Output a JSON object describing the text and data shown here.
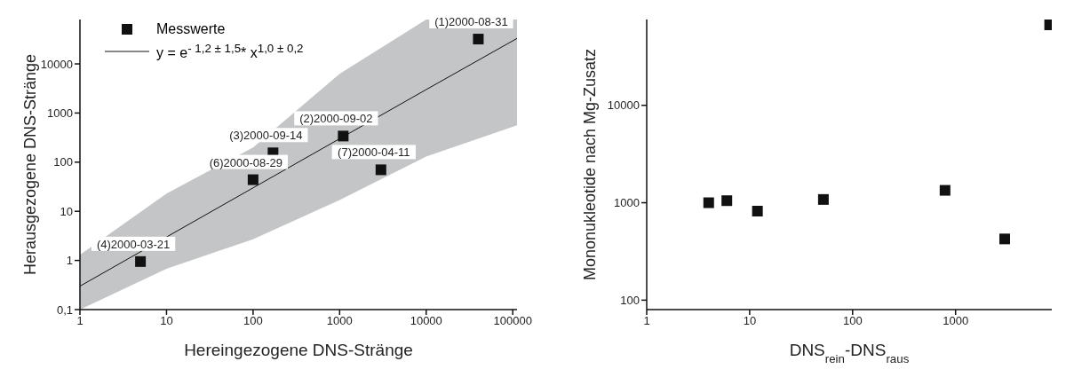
{
  "chart_data": [
    {
      "type": "scatter",
      "xlabel": "Hereingezogene DNS-Stränge",
      "ylabel": "Herausgezogene DNS-Stränge",
      "log": "xy",
      "marker": "square",
      "grid": false,
      "legend": "top left",
      "xlim": [
        1,
        112000
      ],
      "xticks": [
        1,
        10,
        100,
        1000,
        10000,
        100000
      ],
      "ylim": [
        0.1,
        80000
      ],
      "yticks": [
        {
          "value": 0.1,
          "label": "0,1"
        },
        1,
        10,
        100,
        1000,
        10000
      ],
      "series": [
        {
          "name": "Messwerte",
          "color": "#111111",
          "x": [
            5,
            100,
            170,
            1100,
            3000,
            40000
          ],
          "values": [
            0.95,
            44,
            155,
            340,
            70,
            32000
          ]
        },
        {
          "name": "y = e$^{- 1,2 ± 1,5}$* x$^{1,0 ± 0,2}$",
          "type": "line",
          "marker": "none",
          "color": "#111111",
          "x": [
            1,
            10,
            100,
            1000,
            10000,
            112000
          ],
          "values": [
            0.3,
            3,
            30,
            300,
            3000,
            33000
          ],
          "lower": [
            0.1,
            0.68,
            2.7,
            17,
            130,
            560
          ],
          "upper": [
            1.3,
            23,
            200,
            6300,
            80000,
            80000
          ]
        }
      ],
      "annotations": [
        {
          "text": "(1)2000-08-31",
          "x": 40000,
          "y": 32000
        },
        {
          "text": "(2)2000-09-02",
          "x": 1100,
          "y": 340
        },
        {
          "text": "(3)2000-09-14",
          "x": 170,
          "y": 155
        },
        {
          "text": "(6)2000-08-29",
          "x": 100,
          "y": 44
        },
        {
          "text": "(7)2000-04-11",
          "x": 3000,
          "y": 70
        },
        {
          "text": "(4)2000-03-21",
          "x": 5,
          "y": 0.95
        }
      ]
    },
    {
      "type": "scatter",
      "xlabel": "DNS$_{rein}$-DNS$_{raus}$",
      "ylabel": "Mononukleotide nach Mg-Zusatz",
      "log": "xy",
      "marker": "square",
      "grid": false,
      "xlim": [
        1,
        8600
      ],
      "xticks": [
        1,
        10,
        100,
        1000
      ],
      "ylim": [
        80,
        76000
      ],
      "yticks": [
        100,
        1000,
        10000
      ],
      "series": [
        {
          "color": "#111111",
          "x": [
            4,
            6,
            11.9,
            52,
            790,
            3000,
            8200
          ],
          "values": [
            1000,
            1050,
            820,
            1080,
            1340,
            425,
            67000
          ]
        }
      ]
    }
  ]
}
